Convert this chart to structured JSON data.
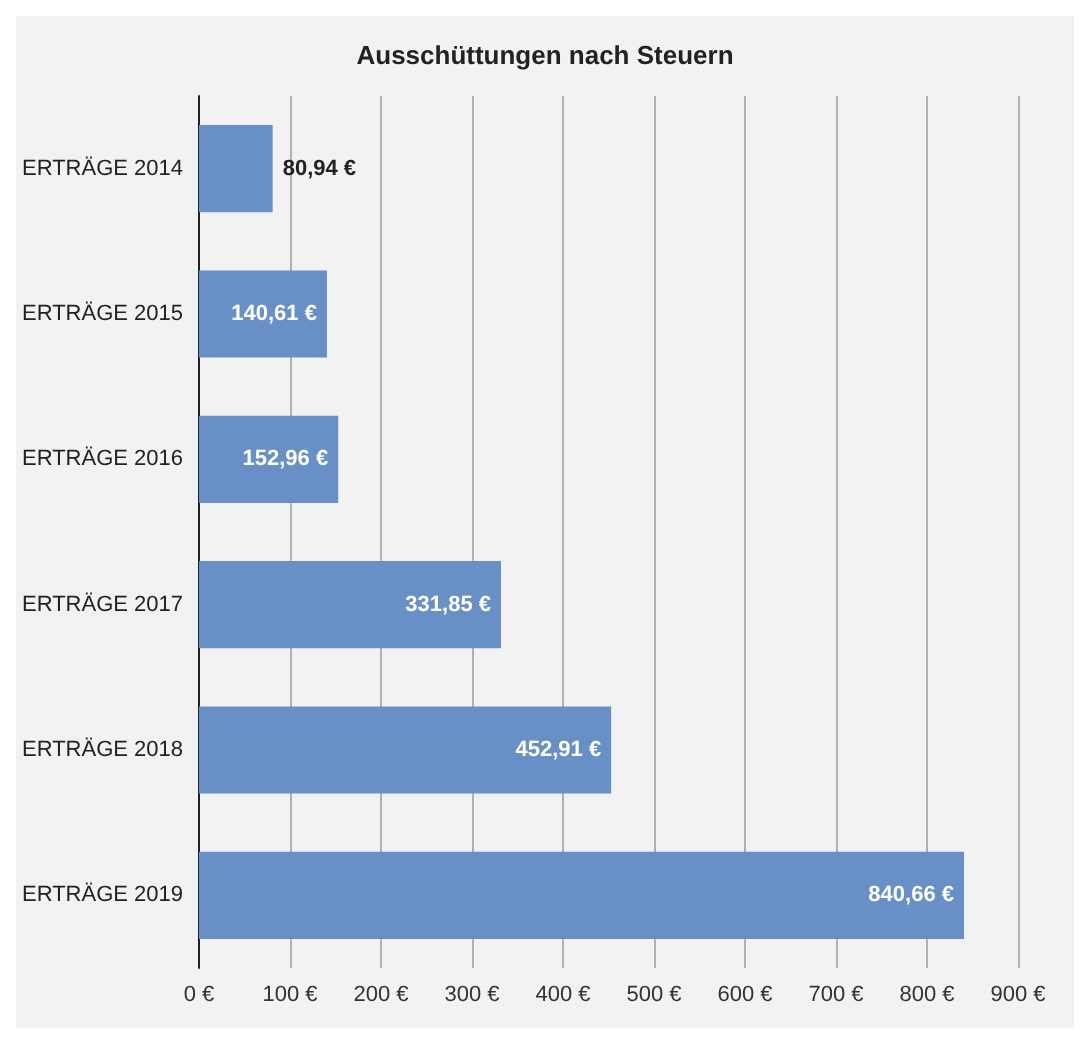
{
  "chart_data": {
    "type": "bar",
    "orientation": "horizontal",
    "title": "Ausschüttungen nach Steuern",
    "categories": [
      "ERTRÄGE 2014",
      "ERTRÄGE 2015",
      "ERTRÄGE 2016",
      "ERTRÄGE 2017",
      "ERTRÄGE 2018",
      "ERTRÄGE 2019"
    ],
    "values": [
      80.94,
      140.61,
      152.96,
      331.85,
      452.91,
      840.66
    ],
    "value_labels": [
      "80,94 €",
      "140,61 €",
      "152,96 €",
      "331,85 €",
      "452,91 €",
      "840,66 €"
    ],
    "color": "#6890c6",
    "xlim": [
      0,
      900
    ],
    "xticks": [
      {
        "value": 0,
        "label": "0 €"
      },
      {
        "value": 100,
        "label": "100 €"
      },
      {
        "value": 200,
        "label": "200 €"
      },
      {
        "value": 300,
        "label": "300 €"
      },
      {
        "value": 400,
        "label": "400 €"
      },
      {
        "value": 500,
        "label": "500 €"
      },
      {
        "value": 600,
        "label": "600 €"
      },
      {
        "value": 700,
        "label": "700 €"
      },
      {
        "value": 800,
        "label": "800 €"
      },
      {
        "value": 900,
        "label": "900 €"
      }
    ],
    "grid": "x"
  }
}
